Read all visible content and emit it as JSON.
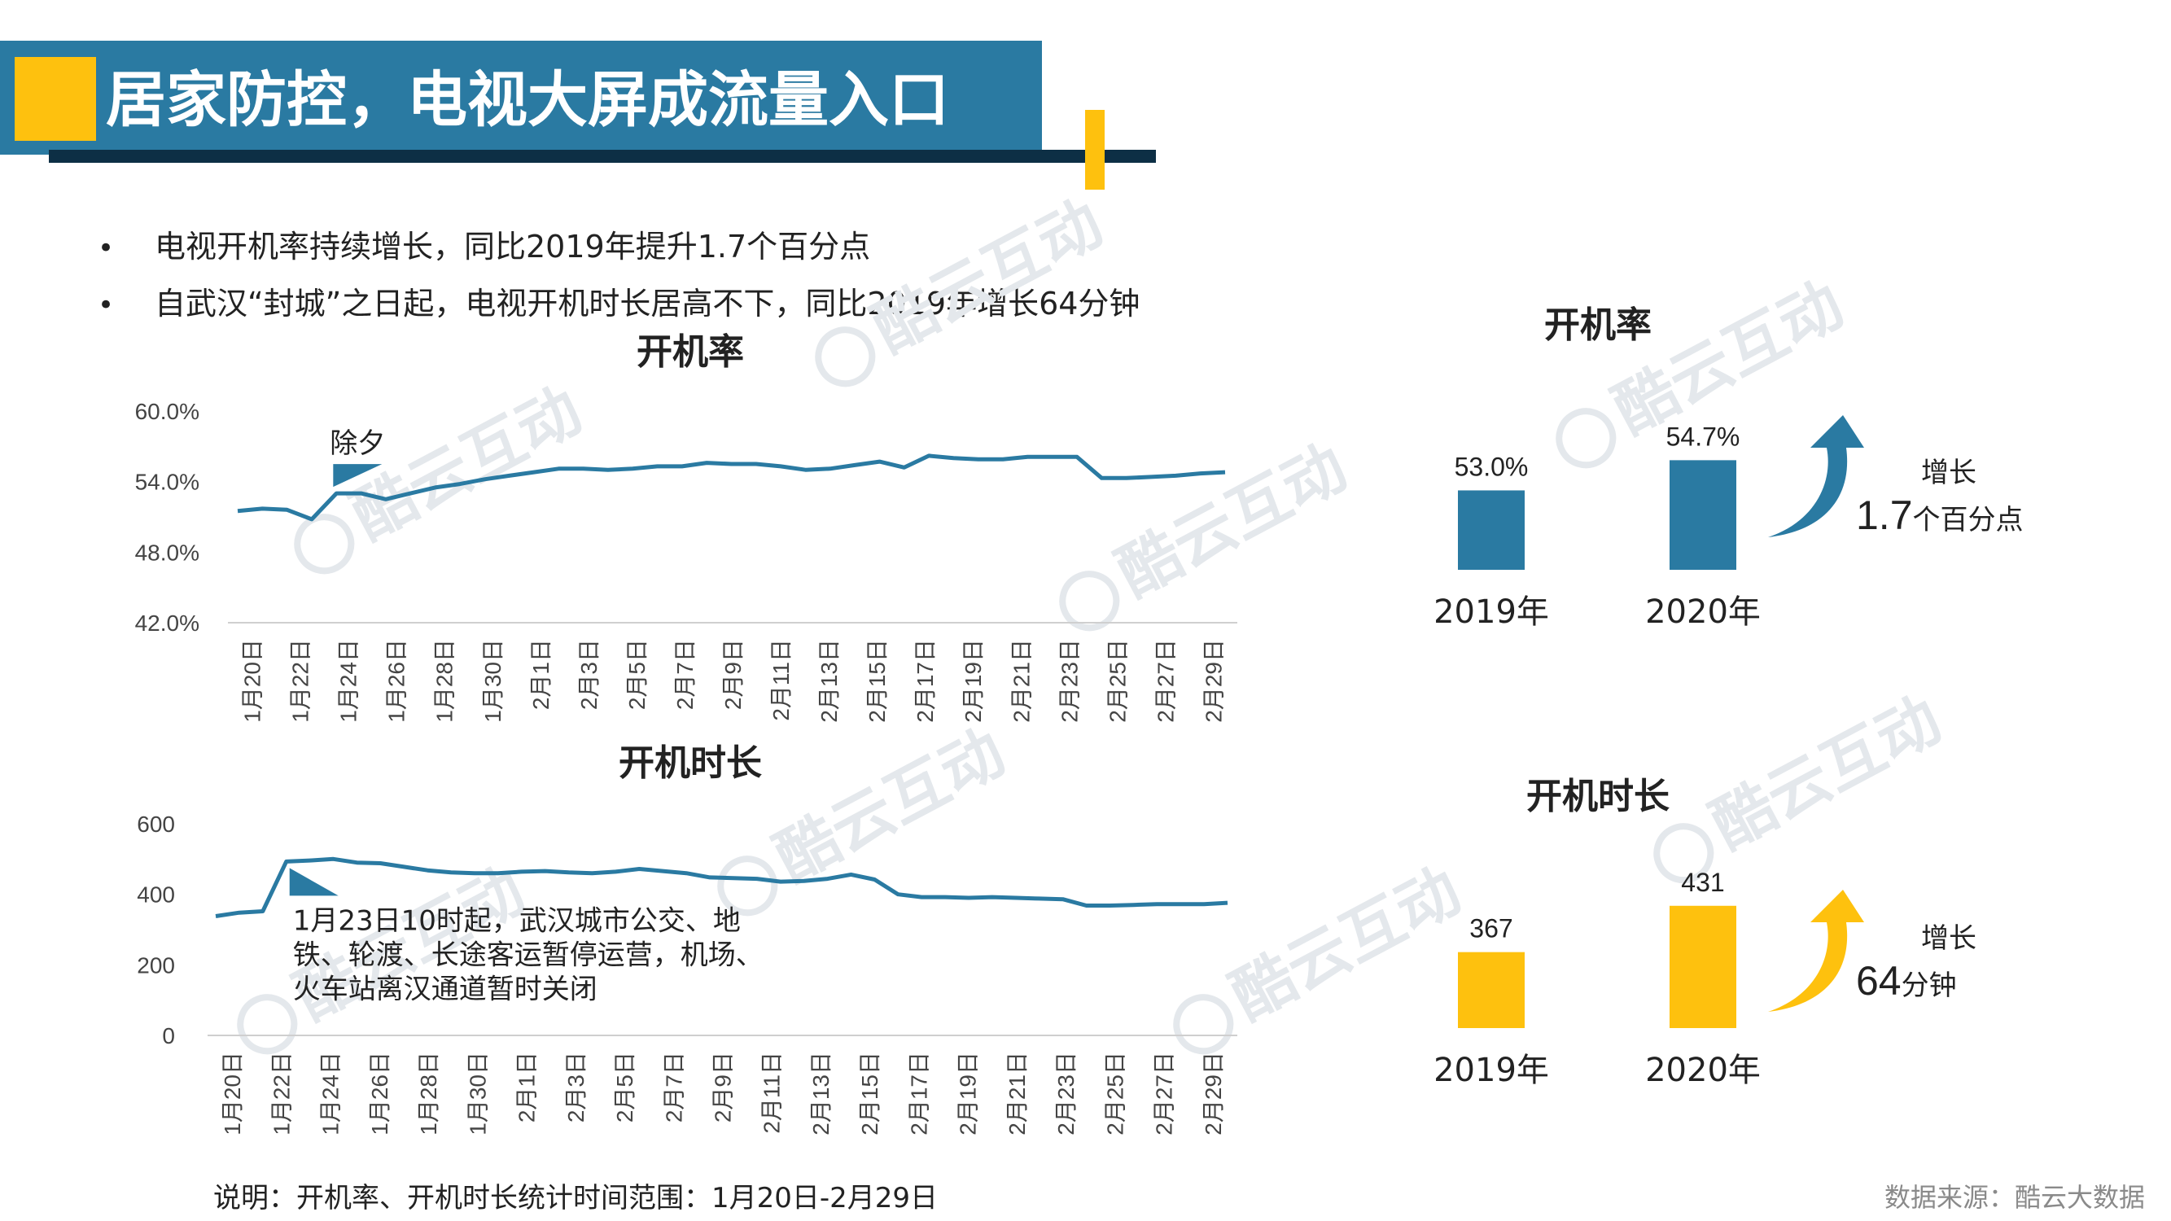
{
  "title": "居家防控，电视大屏成流量入口",
  "bullets": [
    "电视开机率持续增长，同比2019年提升1.7个百分点",
    "自武汉“封城”之日起，电视开机时长居高不下，同比2019年增长64分钟"
  ],
  "bullet_symbol": "•",
  "watermark_text": "酷云互动",
  "note": "说明：开机率、开机时长统计时间范围：1月20日-2月29日",
  "source": "数据来源：酷云大数据",
  "colors": {
    "blue": "#2a7aa2",
    "yellow": "#fec10e",
    "navy": "#0d2f45"
  },
  "chart_data": [
    {
      "type": "line",
      "title": "开机率",
      "unit": "%",
      "x_tick_labels": [
        "1月20日",
        "1月22日",
        "1月24日",
        "1月26日",
        "1月28日",
        "1月30日",
        "2月1日",
        "2月3日",
        "2月5日",
        "2月7日",
        "2月9日",
        "2月11日",
        "2月13日",
        "2月15日",
        "2月17日",
        "2月19日",
        "2月21日",
        "2月23日",
        "2月25日",
        "2月27日",
        "2月29日"
      ],
      "y_tick_labels": [
        "60.0%",
        "54.0%",
        "48.0%",
        "42.0%"
      ],
      "ylim": [
        42,
        60
      ],
      "values": [
        51.5,
        51.7,
        51.6,
        50.8,
        53.0,
        53.0,
        52.5,
        53.0,
        53.5,
        53.8,
        54.2,
        54.5,
        54.8,
        55.1,
        55.1,
        55.0,
        55.1,
        55.3,
        55.3,
        55.6,
        55.5,
        55.5,
        55.3,
        55.0,
        55.1,
        55.4,
        55.7,
        55.2,
        56.2,
        56.0,
        55.9,
        55.9,
        56.1,
        56.1,
        56.1,
        54.3,
        54.3,
        54.4,
        54.5,
        54.7,
        54.8
      ],
      "annotation": {
        "text": "除夕",
        "index": 4
      }
    },
    {
      "type": "line",
      "title": "开机时长",
      "unit": "分钟",
      "x_tick_labels": [
        "1月20日",
        "1月22日",
        "1月24日",
        "1月26日",
        "1月28日",
        "1月30日",
        "2月1日",
        "2月3日",
        "2月5日",
        "2月7日",
        "2月9日",
        "2月11日",
        "2月13日",
        "2月15日",
        "2月17日",
        "2月19日",
        "2月21日",
        "2月23日",
        "2月25日",
        "2月27日",
        "2月29日"
      ],
      "y_tick_labels": [
        "600",
        "400",
        "200",
        "0"
      ],
      "ylim": [
        0,
        600
      ],
      "values": [
        338,
        348,
        352,
        493,
        496,
        500,
        490,
        488,
        478,
        468,
        462,
        460,
        460,
        464,
        466,
        462,
        460,
        464,
        472,
        466,
        460,
        448,
        446,
        444,
        436,
        438,
        444,
        456,
        442,
        400,
        392,
        392,
        390,
        392,
        390,
        388,
        386,
        368,
        368,
        370,
        372,
        372,
        372,
        376
      ],
      "annotation": {
        "lines": [
          "1月23日10时起，武汉城市公交、地",
          "铁、轮渡、长途客运暂停运营，机场、",
          "火车站离汉通道暂时关闭"
        ],
        "index": 3
      }
    },
    {
      "type": "bar",
      "title": "开机率",
      "categories": [
        "2019年",
        "2020年"
      ],
      "values": [
        53.0,
        54.7
      ],
      "value_labels": [
        "53.0%",
        "54.7%"
      ],
      "color": "#2a7aa2",
      "growth_label": "增长",
      "growth_value": "1.7",
      "growth_unit": "个百分点"
    },
    {
      "type": "bar",
      "title": "开机时长",
      "categories": [
        "2019年",
        "2020年"
      ],
      "values": [
        367,
        431
      ],
      "value_labels": [
        "367",
        "431"
      ],
      "color": "#fec10e",
      "growth_label": "增长",
      "growth_value": "64",
      "growth_unit": "分钟"
    }
  ]
}
